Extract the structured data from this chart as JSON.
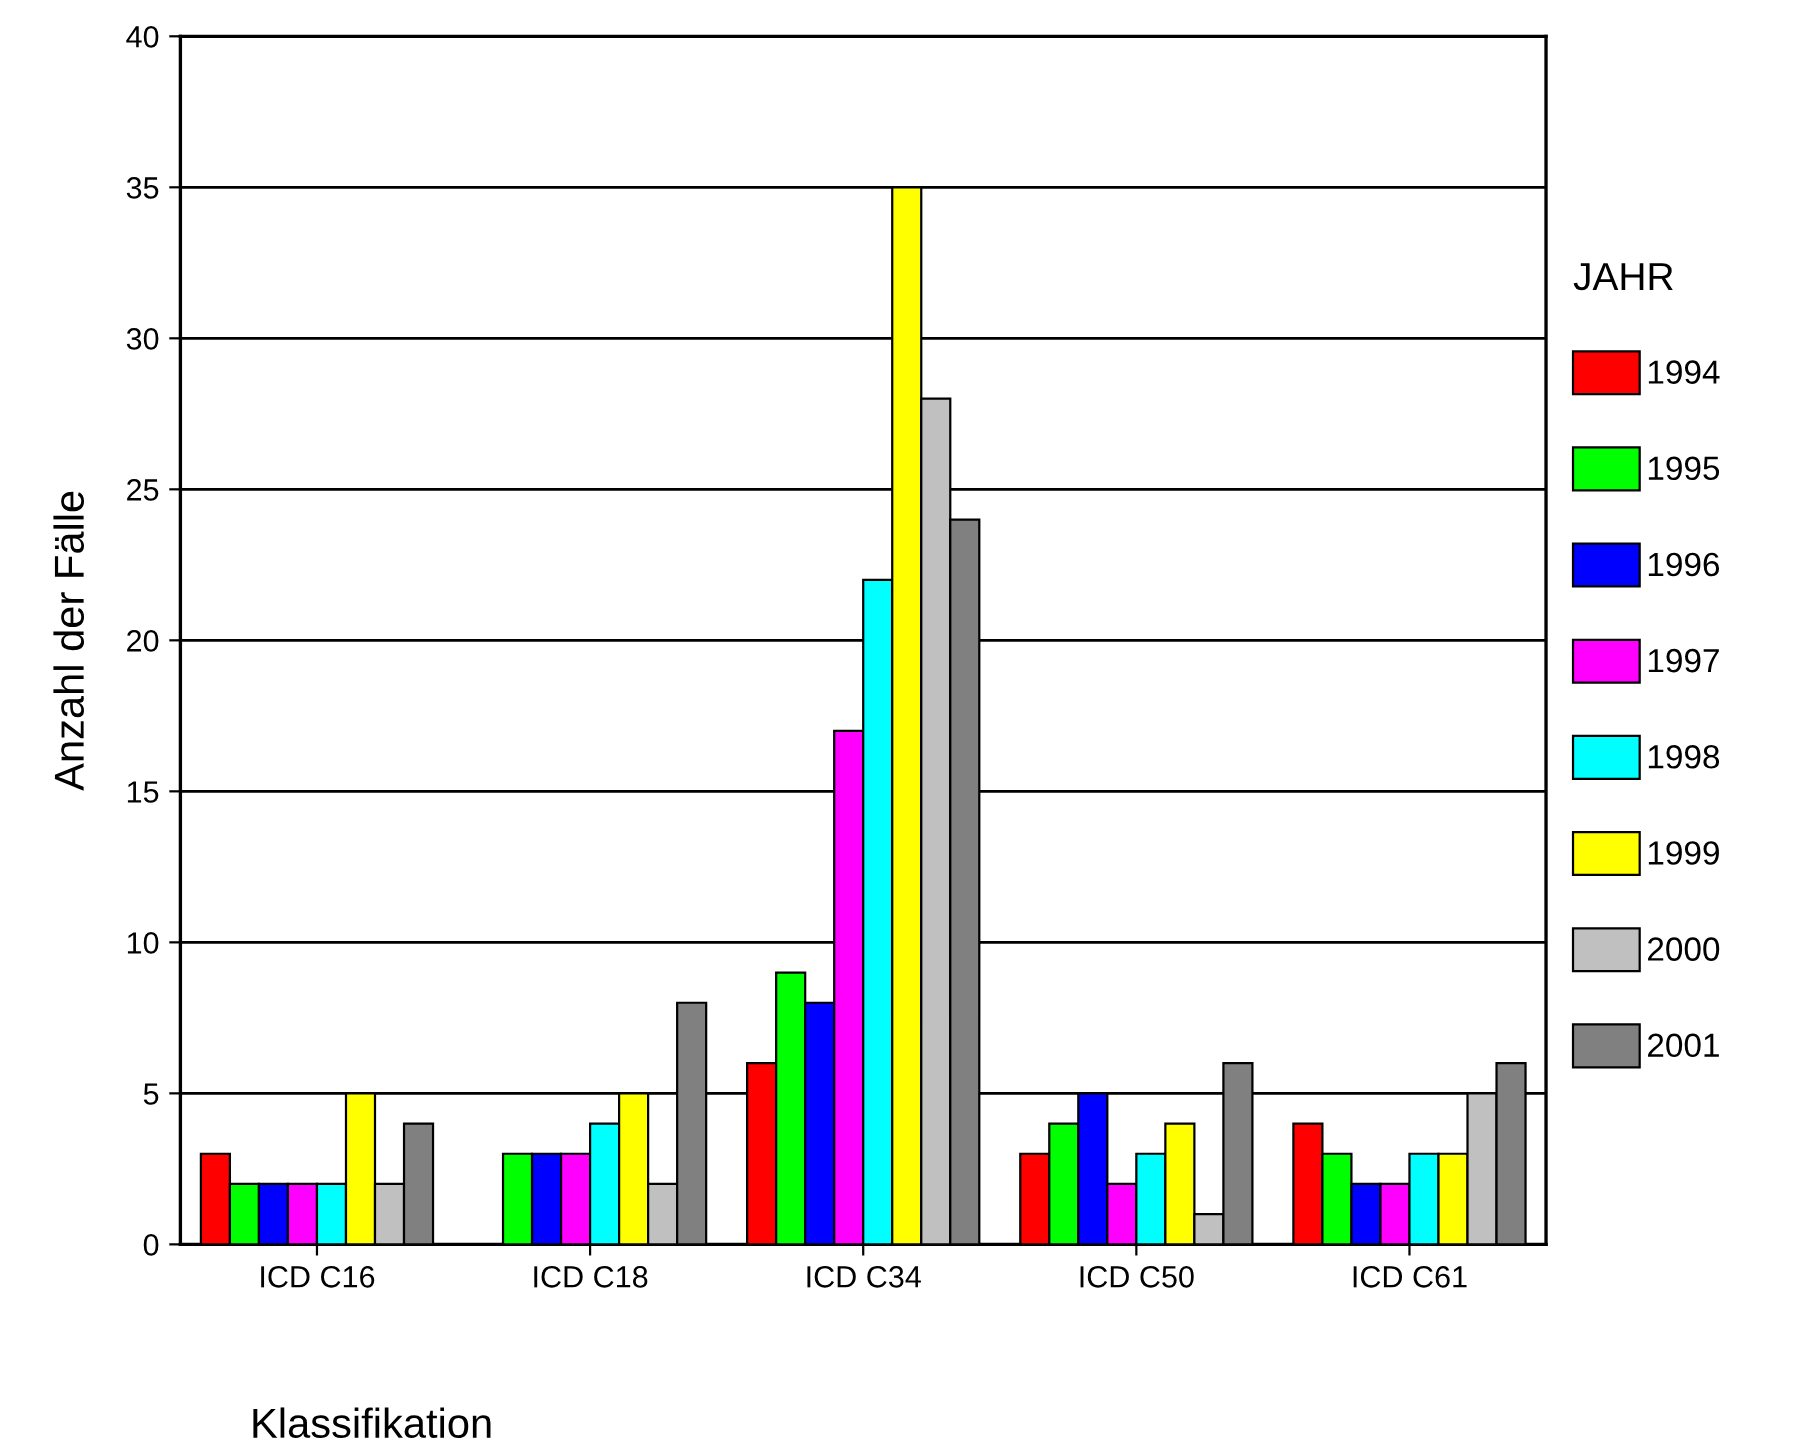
{
  "chart_data": {
    "type": "bar",
    "xlabel": "Klassifikation",
    "ylabel": "Anzahl der Fälle",
    "legend_title": "JAHR",
    "categories": [
      "ICD C16",
      "ICD C18",
      "ICD C34",
      "ICD C50",
      "ICD C61"
    ],
    "series": [
      {
        "name": "1994",
        "color": "#ff0000",
        "values": [
          3,
          null,
          6,
          3,
          4
        ]
      },
      {
        "name": "1995",
        "color": "#00ff00",
        "values": [
          2,
          3,
          9,
          4,
          3
        ]
      },
      {
        "name": "1996",
        "color": "#0000ff",
        "values": [
          2,
          3,
          8,
          5,
          2
        ]
      },
      {
        "name": "1997",
        "color": "#ff00ff",
        "values": [
          2,
          3,
          17,
          2,
          2
        ]
      },
      {
        "name": "1998",
        "color": "#00ffff",
        "values": [
          2,
          4,
          22,
          3,
          3
        ]
      },
      {
        "name": "1999",
        "color": "#ffff00",
        "values": [
          5,
          5,
          35,
          4,
          3
        ]
      },
      {
        "name": "2000",
        "color": "#c0c0c0",
        "values": [
          2,
          2,
          28,
          1,
          5
        ]
      },
      {
        "name": "2001",
        "color": "#808080",
        "values": [
          4,
          8,
          24,
          6,
          6
        ]
      }
    ],
    "ylim": [
      0,
      40
    ],
    "yticks": [
      0,
      5,
      10,
      15,
      20,
      25,
      30,
      35,
      40
    ],
    "grid": "y",
    "legend": "right"
  }
}
